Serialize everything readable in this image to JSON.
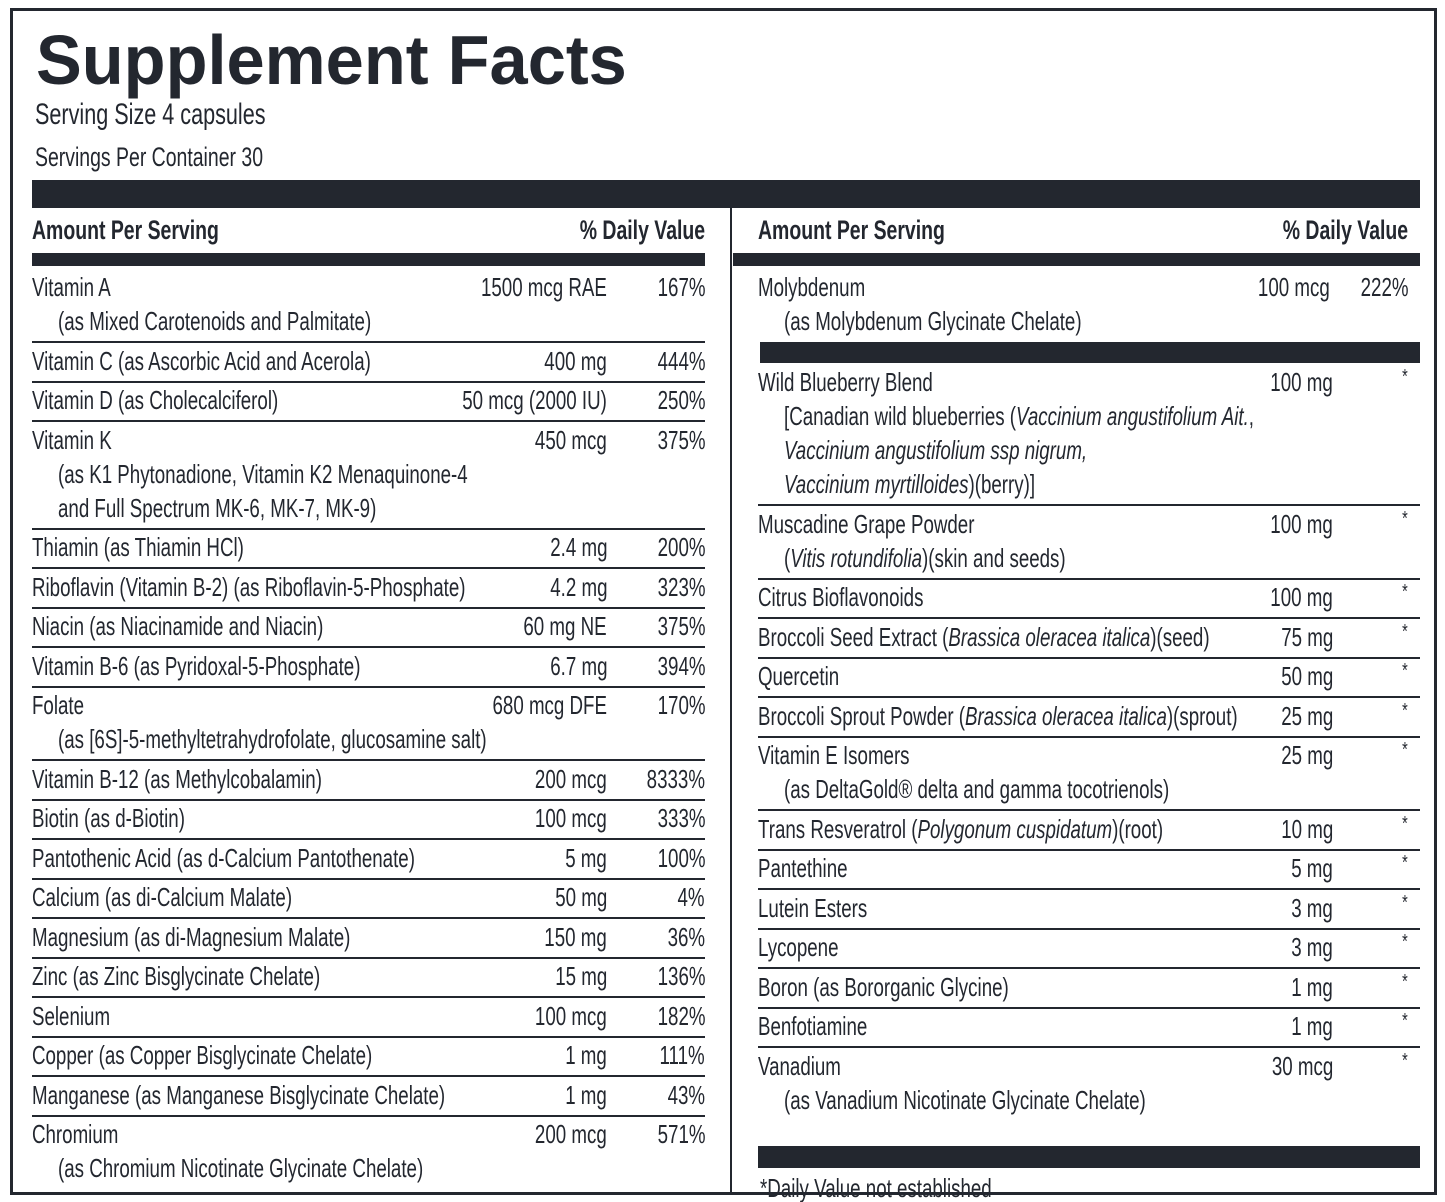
{
  "title": "Supplement Facts",
  "serving_size": "Serving Size 4 capsules",
  "servings_per_container": "Servings Per Container 30",
  "left": {
    "header": {
      "amount": "Amount Per Serving",
      "dv": "% Daily Value"
    },
    "rows": [
      {
        "name": "Vitamin A",
        "sub": [
          "(as Mixed Carotenoids and Palmitate)"
        ],
        "amount": "1500 mcg RAE",
        "dv": "167%"
      },
      {
        "name": "Vitamin C (as Ascorbic Acid and Acerola)",
        "amount": "400 mg",
        "dv": "444%"
      },
      {
        "name": "Vitamin D (as Cholecalciferol)",
        "amount": "50 mcg (2000 IU)",
        "dv": "250%"
      },
      {
        "name": "Vitamin K",
        "sub": [
          "(as K1 Phytonadione, Vitamin K2 Menaquinone-4",
          "and Full Spectrum MK-6, MK-7, MK-9)"
        ],
        "amount": "450 mcg",
        "dv": "375%"
      },
      {
        "name": "Thiamin (as Thiamin HCl)",
        "amount": "2.4 mg",
        "dv": "200%"
      },
      {
        "name": "Riboflavin (Vitamin B-2) (as Riboflavin-5-Phosphate)",
        "amount": "4.2 mg",
        "dv": "323%"
      },
      {
        "name": "Niacin (as Niacinamide and Niacin)",
        "amount": "60 mg NE",
        "dv": "375%"
      },
      {
        "name": "Vitamin B-6 (as Pyridoxal-5-Phosphate)",
        "amount": "6.7 mg",
        "dv": "394%"
      },
      {
        "name": "Folate",
        "sub": [
          "(as [6S]-5-methyltetrahydrofolate, glucosamine salt)"
        ],
        "amount": "680 mcg DFE",
        "dv": "170%"
      },
      {
        "name": "Vitamin B-12 (as Methylcobalamin)",
        "amount": "200 mcg",
        "dv": "8333%"
      },
      {
        "name": "Biotin (as d-Biotin)",
        "amount": "100 mcg",
        "dv": "333%"
      },
      {
        "name": "Pantothenic Acid (as d-Calcium Pantothenate)",
        "amount": "5 mg",
        "dv": "100%"
      },
      {
        "name": "Calcium (as di-Calcium Malate)",
        "amount": "50 mg",
        "dv": "4%"
      },
      {
        "name": "Magnesium (as di-Magnesium Malate)",
        "amount": "150 mg",
        "dv": "36%"
      },
      {
        "name": "Zinc (as Zinc Bisglycinate Chelate)",
        "amount": "15 mg",
        "dv": "136%"
      },
      {
        "name": "Selenium",
        "amount": "100 mcg",
        "dv": "182%"
      },
      {
        "name": "Copper (as Copper Bisglycinate Chelate)",
        "amount": "1 mg",
        "dv": "111%"
      },
      {
        "name": "Manganese (as Manganese Bisglycinate Chelate)",
        "amount": "1 mg",
        "dv": "43%"
      },
      {
        "name": "Chromium",
        "sub": [
          "(as Chromium Nicotinate Glycinate Chelate)"
        ],
        "amount": "200 mcg",
        "dv": "571%"
      }
    ]
  },
  "right": {
    "header": {
      "amount": "Amount Per Serving",
      "dv": "% Daily Value"
    },
    "rows": [
      {
        "name": "Molybdenum",
        "sub": [
          "(as Molybdenum Glycinate Chelate)"
        ],
        "amount": "100 mcg",
        "dv": "222%"
      }
    ],
    "blend_rows": [
      {
        "name": "Wild Blueberry Blend",
        "sub": [
          [
            "[Canadian wild blueberries (",
            {
              "italic": "Vaccinium angustifolium Ait."
            },
            ","
          ],
          [
            {
              "italic": "Vaccinium angustifolium ssp nigrum,"
            }
          ],
          [
            {
              "italic": "Vaccinium myrtilloides"
            },
            ")(berry)]"
          ]
        ],
        "amount": "100 mg",
        "dv": "*"
      },
      {
        "name": "Muscadine Grape Powder",
        "sub": [
          [
            "(",
            {
              "italic": "Vitis rotundifolia"
            },
            ")(skin and seeds)"
          ]
        ],
        "amount": "100 mg",
        "dv": "*"
      },
      {
        "name": "Citrus Bioflavonoids",
        "amount": "100 mg",
        "dv": "*"
      },
      {
        "name": [
          "Broccoli Seed Extract (",
          {
            "italic": "Brassica oleracea italica"
          },
          ")(seed)"
        ],
        "amount": "75 mg",
        "dv": "*"
      },
      {
        "name": "Quercetin",
        "amount": "50 mg",
        "dv": "*"
      },
      {
        "name": [
          "Broccoli Sprout Powder (",
          {
            "italic": "Brassica oleracea italica"
          },
          ")(sprout)"
        ],
        "amount": "25 mg",
        "dv": "*"
      },
      {
        "name": "Vitamin E Isomers",
        "sub": [
          "(as DeltaGold® delta and gamma tocotrienols)"
        ],
        "amount": "25 mg",
        "dv": "*"
      },
      {
        "name": [
          "Trans Resveratrol (",
          {
            "italic": "Polygonum cuspidatum"
          },
          ")(root)"
        ],
        "amount": "10 mg",
        "dv": "*"
      },
      {
        "name": "Pantethine",
        "amount": "5 mg",
        "dv": "*"
      },
      {
        "name": "Lutein Esters",
        "amount": "3 mg",
        "dv": "*"
      },
      {
        "name": "Lycopene",
        "amount": "3 mg",
        "dv": "*"
      },
      {
        "name": "Boron (as Bororganic Glycine)",
        "amount": "1 mg",
        "dv": "*"
      },
      {
        "name": "Benfotiamine",
        "amount": "1 mg",
        "dv": "*"
      },
      {
        "name": "Vanadium",
        "sub": [
          "(as Vanadium Nicotinate Glycinate Chelate)"
        ],
        "amount": "30 mcg",
        "dv": "*"
      }
    ],
    "footnote": "*Daily Value not established"
  }
}
